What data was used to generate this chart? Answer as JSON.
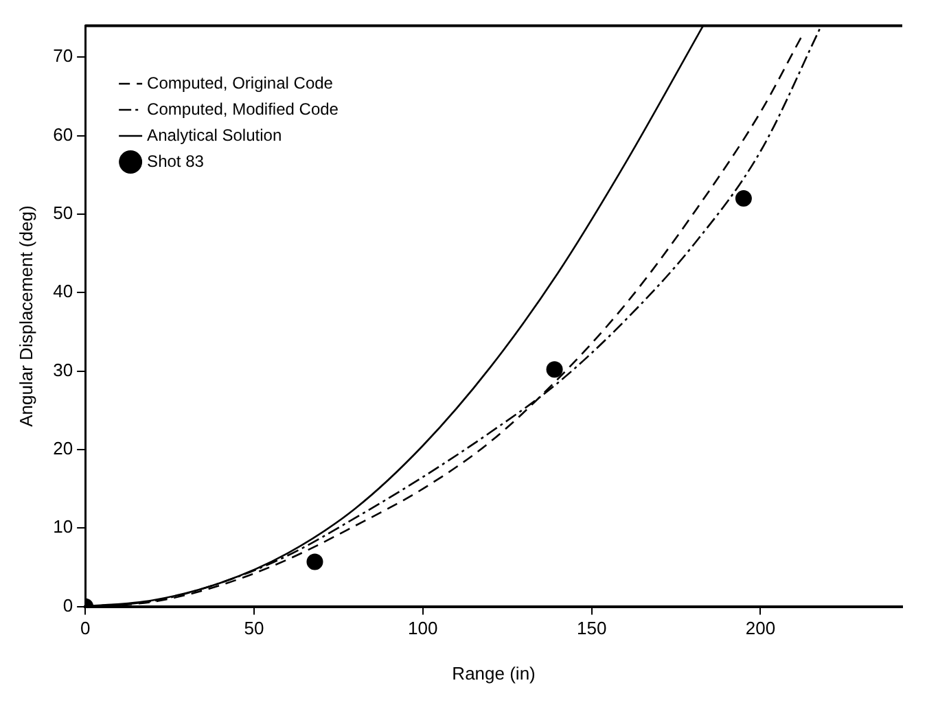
{
  "chart_data": {
    "type": "line",
    "xlabel": "Range (in)",
    "ylabel": "Angular Displacement (deg)",
    "xlim": [
      0,
      242
    ],
    "ylim": [
      0,
      74
    ],
    "xticks": [
      0,
      50,
      100,
      150,
      200
    ],
    "yticks": [
      0,
      10,
      20,
      30,
      40,
      50,
      60,
      70
    ],
    "grid": false,
    "legend": "top left",
    "marker": "none",
    "series": [
      {
        "name": "Computed, Original Code",
        "color": "#000000",
        "line_style": "dashed",
        "x": [
          0,
          20,
          40,
          60,
          80,
          100,
          120,
          140,
          160,
          180,
          200,
          212
        ],
        "values": [
          0,
          0.6,
          2.7,
          6,
          10.3,
          15,
          21,
          29,
          38.5,
          50,
          63,
          72.5
        ]
      },
      {
        "name": "Computed, Modified Code",
        "color": "#000000",
        "line_style": "dashdot",
        "x": [
          0,
          20,
          40,
          60,
          80,
          100,
          120,
          140,
          160,
          180,
          200,
          218
        ],
        "values": [
          0,
          0.7,
          3,
          6.5,
          11.3,
          16.5,
          22.2,
          28.5,
          36.5,
          46,
          58,
          74
        ]
      },
      {
        "name": "Analytical Solution",
        "color": "#000000",
        "line_style": "solid",
        "x": [
          0,
          20,
          40,
          60,
          80,
          100,
          120,
          140,
          160,
          183
        ],
        "values": [
          0,
          0.8,
          3,
          6.8,
          12.5,
          20.5,
          30.5,
          42.5,
          56.5,
          74
        ]
      },
      {
        "name": "Shot 83",
        "type": "scatter",
        "marker": "circle",
        "color": "#000000",
        "x": [
          0,
          68,
          139,
          195
        ],
        "values": [
          0,
          5.7,
          30.2,
          52
        ]
      }
    ]
  }
}
